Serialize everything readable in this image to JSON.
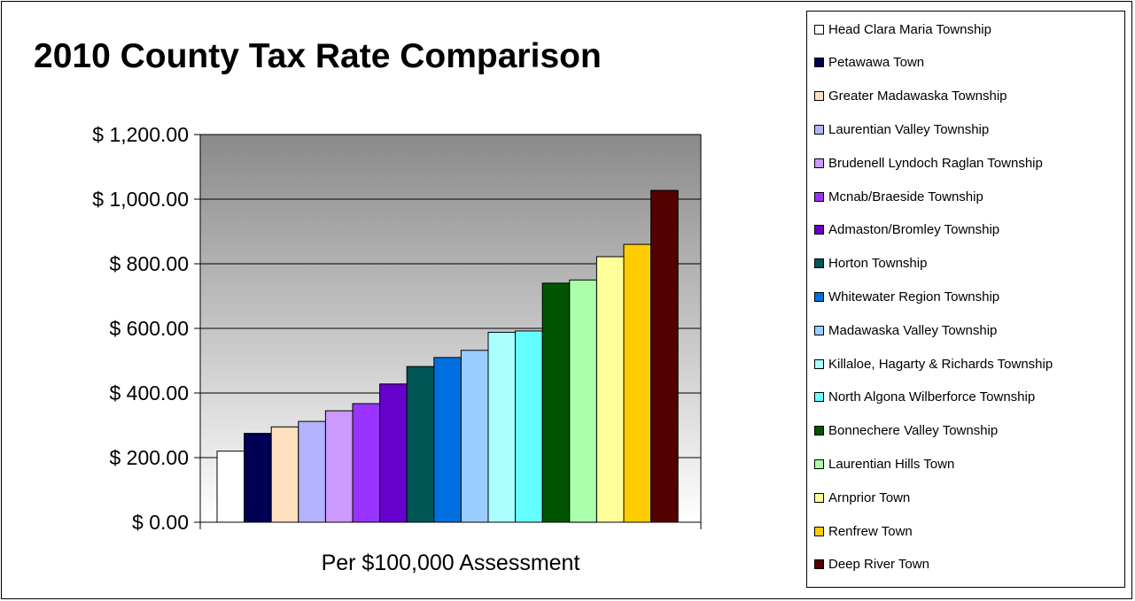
{
  "chart_data": {
    "type": "bar",
    "title": "2010 County Tax Rate Comparison",
    "xlabel": "Per $100,000 Assessment",
    "ylabel": "",
    "ylim": [
      0,
      1200
    ],
    "yticks": [
      0,
      200,
      400,
      600,
      800,
      1000,
      1200
    ],
    "ytick_labels": [
      "$ 0.00",
      "$ 200.00",
      "$ 400.00",
      "$ 600.00",
      "$ 800.00",
      "$ 1,000.00",
      "$ 1,200.00"
    ],
    "grid": true,
    "legend_position": "right",
    "background": "gradient gray (dark top to white bottom)",
    "series": [
      {
        "name": "Head Clara Maria Township",
        "value": 220,
        "color": "#ffffff"
      },
      {
        "name": "Petawawa Town",
        "value": 275,
        "color": "#000055"
      },
      {
        "name": "Greater Madawaska Township",
        "value": 295,
        "color": "#ffdfbf"
      },
      {
        "name": "Laurentian Valley Township",
        "value": 312,
        "color": "#b3b3ff"
      },
      {
        "name": "Brudenell Lyndoch Raglan Township",
        "value": 345,
        "color": "#cc99ff"
      },
      {
        "name": "Mcnab/Braeside Township",
        "value": 367,
        "color": "#9933ff"
      },
      {
        "name": "Admaston/Bromley Township",
        "value": 428,
        "color": "#6600cc"
      },
      {
        "name": "Horton Township",
        "value": 482,
        "color": "#005555"
      },
      {
        "name": "Whitewater Region Township",
        "value": 510,
        "color": "#0070e0"
      },
      {
        "name": "Madawaska Valley Township",
        "value": 532,
        "color": "#99ccff"
      },
      {
        "name": "Killaloe, Hagarty & Richards Township",
        "value": 588,
        "color": "#aaffff"
      },
      {
        "name": "North Algona Wilberforce Township",
        "value": 592,
        "color": "#66ffff"
      },
      {
        "name": "Bonnechere Valley Township",
        "value": 740,
        "color": "#005500"
      },
      {
        "name": "Laurentian Hills Town",
        "value": 750,
        "color": "#aaffaa"
      },
      {
        "name": "Arnprior Town",
        "value": 822,
        "color": "#ffff99"
      },
      {
        "name": "Renfrew Town",
        "value": 860,
        "color": "#ffcc00"
      },
      {
        "name": "Deep River Town",
        "value": 1027,
        "color": "#550000"
      }
    ]
  }
}
